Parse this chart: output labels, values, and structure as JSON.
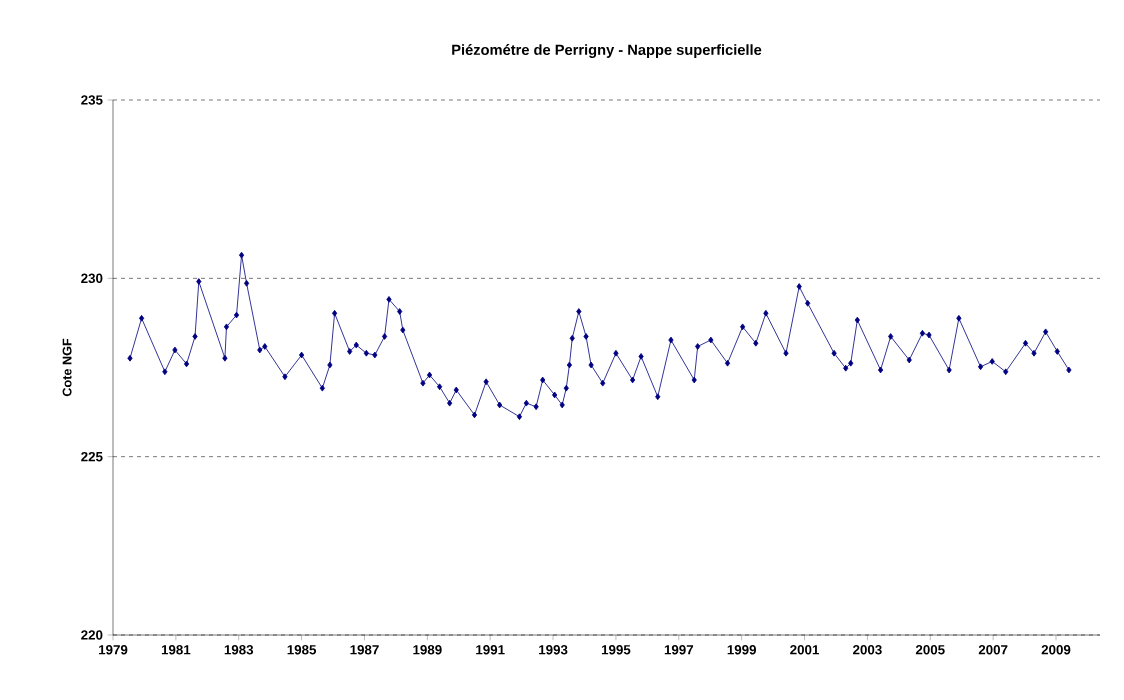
{
  "chart_data": {
    "type": "line",
    "title": "Piézométre de Perrigny - Nappe superficielle",
    "ylabel": "Cote NGF",
    "series": [
      {
        "color": "#000080",
        "x": [
          1979.54,
          1979.91,
          1980.65,
          1980.97,
          1981.34,
          1981.61,
          1981.73,
          1982.56,
          1982.61,
          1982.93,
          1983.09,
          1983.25,
          1983.67,
          1983.83,
          1984.47,
          1985.0,
          1985.66,
          1985.9,
          1986.05,
          1986.53,
          1986.74,
          1987.06,
          1987.33,
          1987.64,
          1987.78,
          1988.12,
          1988.22,
          1988.86,
          1989.07,
          1989.39,
          1989.71,
          1989.92,
          1990.5,
          1990.87,
          1991.3,
          1991.93,
          1992.15,
          1992.46,
          1992.67,
          1993.05,
          1993.29,
          1993.42,
          1993.52,
          1993.61,
          1993.82,
          1994.05,
          1994.21,
          1994.58,
          1995.0,
          1995.53,
          1995.8,
          1996.33,
          1996.75,
          1997.49,
          1997.6,
          1998.02,
          1998.55,
          1999.03,
          1999.45,
          1999.77,
          2000.41,
          2000.83,
          2001.1,
          2001.94,
          2002.31,
          2002.47,
          2002.68,
          2003.42,
          2003.74,
          2004.33,
          2004.75,
          2004.96,
          2005.6,
          2005.91,
          2006.6,
          2006.97,
          2007.4,
          2008.03,
          2008.3,
          2008.67,
          2009.04,
          2009.41
        ],
        "values": [
          227.76,
          228.88,
          227.38,
          227.99,
          227.6,
          228.37,
          229.91,
          227.76,
          228.64,
          228.97,
          230.65,
          229.86,
          227.99,
          228.09,
          227.24,
          227.85,
          226.92,
          227.57,
          229.02,
          227.95,
          228.13,
          227.9,
          227.85,
          228.37,
          229.41,
          229.07,
          228.55,
          227.06,
          227.29,
          226.96,
          226.5,
          226.87,
          226.17,
          227.1,
          226.45,
          226.12,
          226.5,
          226.4,
          227.15,
          226.73,
          226.45,
          226.92,
          227.57,
          228.32,
          229.07,
          228.37,
          227.57,
          227.06,
          227.9,
          227.15,
          227.81,
          226.68,
          228.27,
          227.15,
          228.09,
          228.27,
          227.62,
          228.64,
          228.18,
          229.02,
          227.9,
          229.77,
          229.3,
          227.9,
          227.48,
          227.62,
          228.83,
          227.43,
          228.37,
          227.71,
          228.46,
          228.41,
          227.43,
          228.88,
          227.52,
          227.67,
          227.38,
          228.18,
          227.9,
          228.5,
          227.95,
          227.43
        ]
      }
    ],
    "xlim": [
      1979,
      2010.4
    ],
    "xticks": [
      1979,
      1981,
      1983,
      1985,
      1987,
      1989,
      1991,
      1993,
      1995,
      1997,
      1999,
      2001,
      2003,
      2005,
      2007,
      2009
    ],
    "ylim": [
      220,
      235
    ],
    "yticks": [
      220,
      225,
      230,
      235
    ],
    "grid": "y",
    "marker": "diamond",
    "line_style": "solid"
  }
}
